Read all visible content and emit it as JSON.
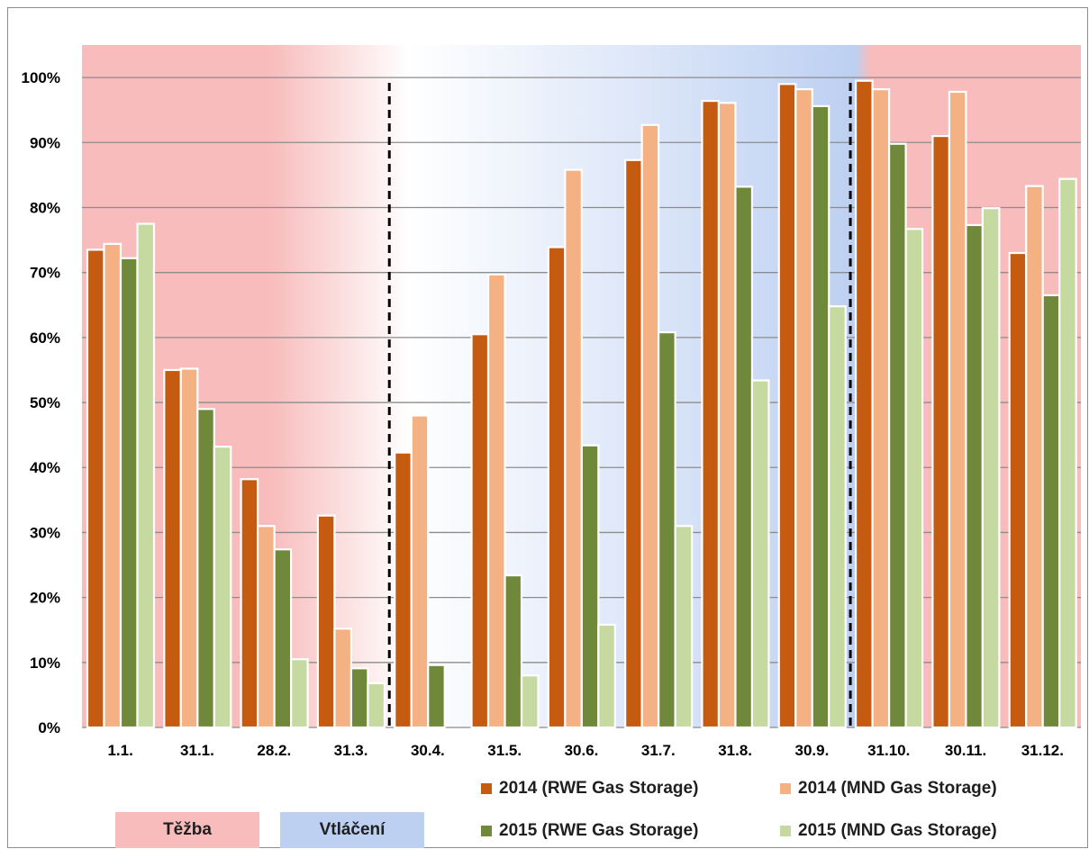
{
  "chart_data": {
    "type": "bar",
    "categories": [
      "1.1.",
      "31.1.",
      "28.2.",
      "31.3.",
      "30.4.",
      "31.5.",
      "30.6.",
      "31.7.",
      "31.8.",
      "30.9.",
      "31.10.",
      "30.11.",
      "31.12."
    ],
    "series": [
      {
        "name": "2014 (RWE Gas Storage)",
        "color": "#c55a11",
        "values": [
          73.5,
          55,
          38.2,
          32.6,
          42.3,
          60.5,
          73.9,
          87.3,
          96.4,
          99,
          99.5,
          91,
          73
        ]
      },
      {
        "name": "2014 (MND Gas Storage)",
        "color": "#f4b183",
        "values": [
          74.4,
          55.2,
          31,
          15.2,
          48,
          69.7,
          85.8,
          92.7,
          96.1,
          98.2,
          98.2,
          97.8,
          83.3
        ]
      },
      {
        "name": "2015 (RWE Gas Storage)",
        "color": "#70883a",
        "values": [
          72.2,
          49,
          27.4,
          9.1,
          9.6,
          23.4,
          43.4,
          60.8,
          83.2,
          95.6,
          89.8,
          77.3,
          66.5
        ]
      },
      {
        "name": "2015 (MND Gas Storage)",
        "color": "#c5d9a0",
        "values": [
          77.5,
          43.2,
          10.5,
          6.8,
          null,
          8,
          15.8,
          31,
          53.4,
          64.8,
          76.7,
          79.9,
          84.4
        ]
      }
    ],
    "ylim": [
      0,
      105
    ],
    "yticks": [
      0,
      10,
      20,
      30,
      40,
      50,
      60,
      70,
      80,
      90,
      100
    ],
    "ytick_labels": [
      "0%",
      "10%",
      "20%",
      "30%",
      "40%",
      "50%",
      "60%",
      "70%",
      "80%",
      "90%",
      "100%"
    ],
    "grid": true,
    "phase_dividers_after_categories": [
      "31.3.",
      "30.9."
    ],
    "zones": [
      {
        "label": "Těžba",
        "color": "#f8bcbc"
      },
      {
        "label": "Vtláčení",
        "color": "#bdd0f2"
      }
    ],
    "legend_position": "bottom-right"
  }
}
